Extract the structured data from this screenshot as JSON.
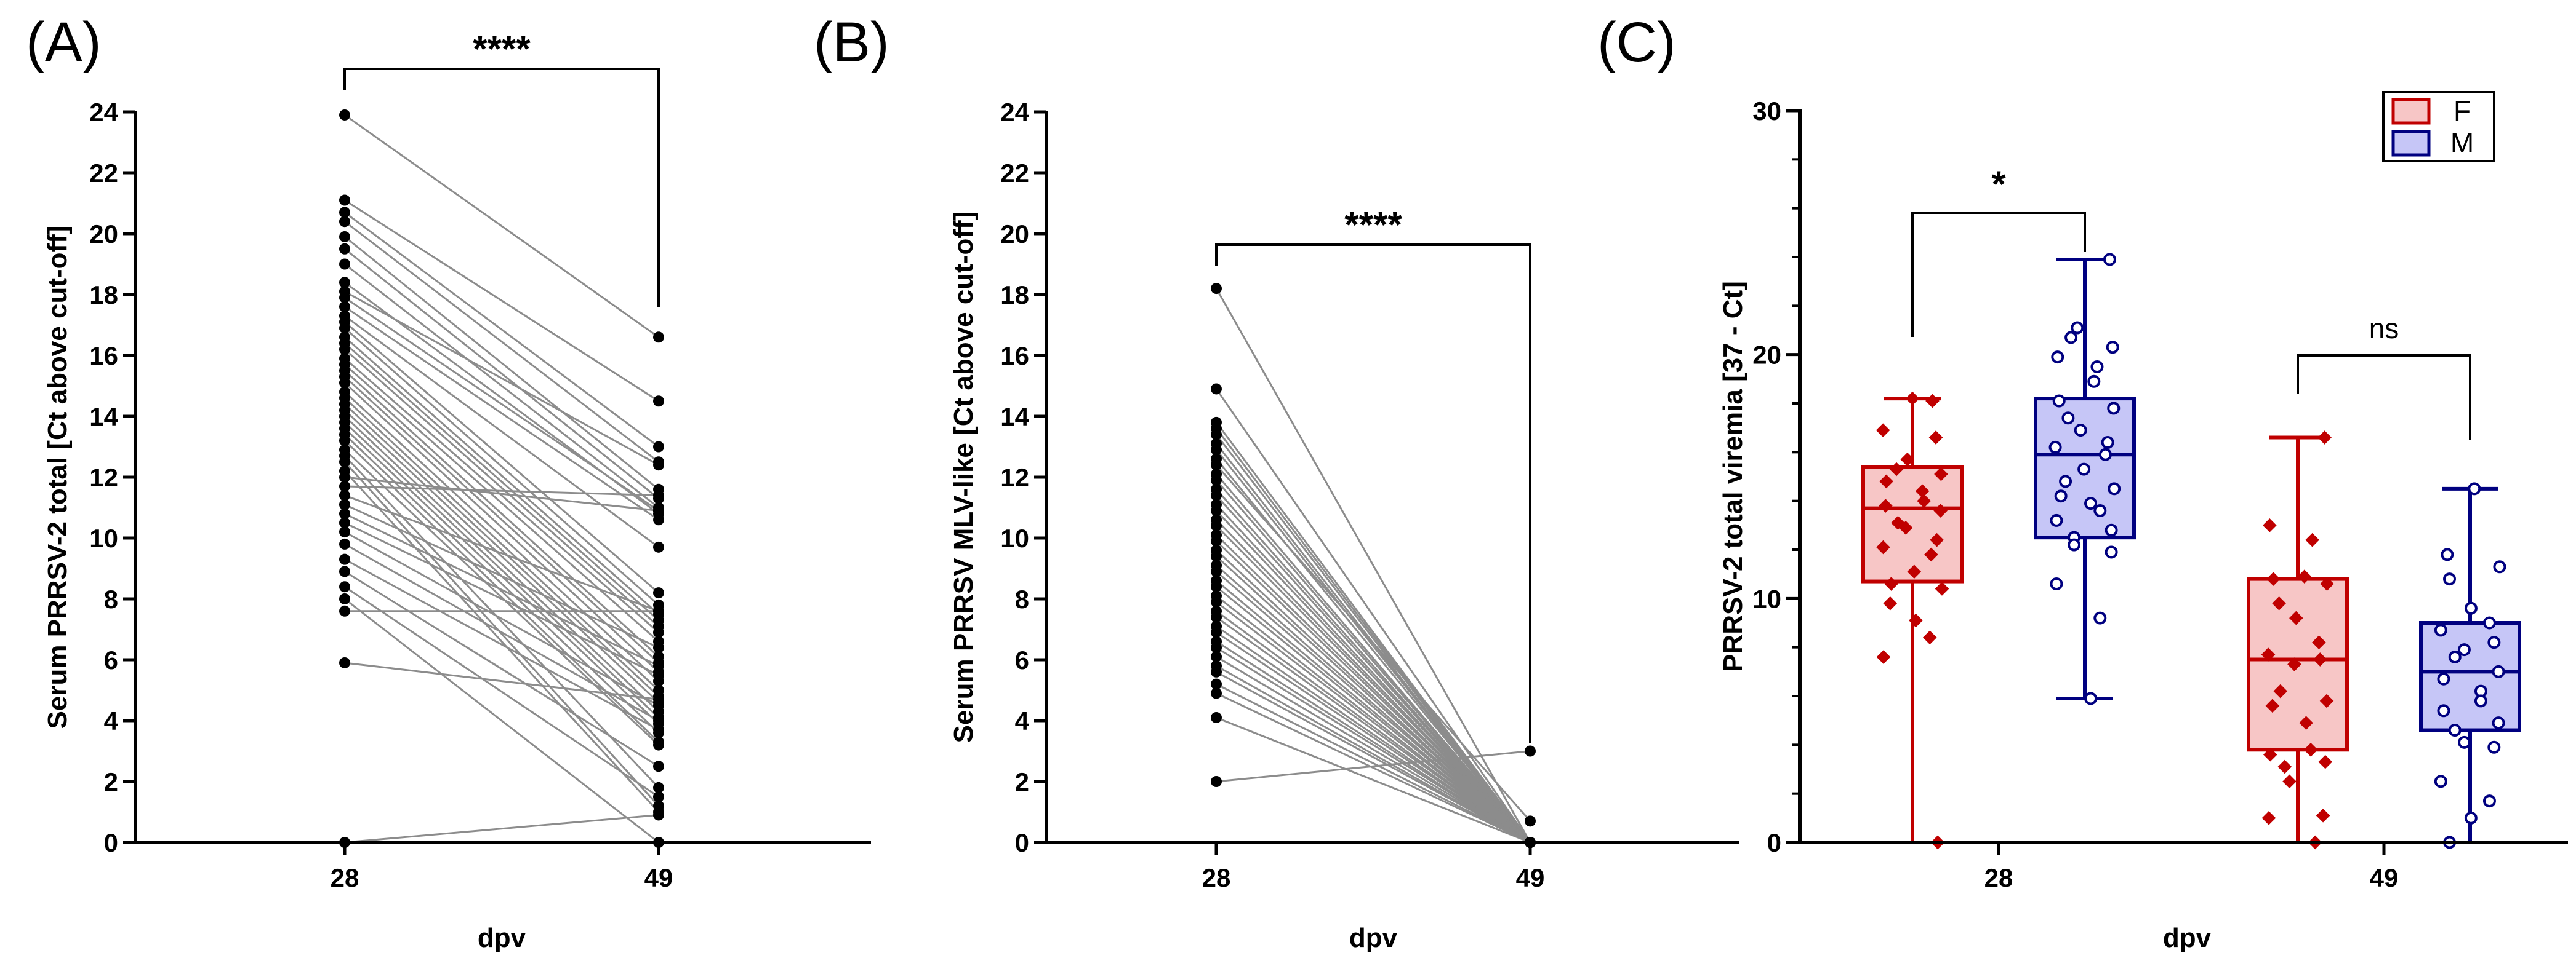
{
  "chart_data": [
    {
      "type": "line",
      "subtype": "paired-before-after",
      "panel": "(A)",
      "xlabel": "dpv",
      "ylabel": "Serum PRRSV-2 total [Ct above cut-off]",
      "categories": [
        "28",
        "49"
      ],
      "ylim": [
        0,
        24
      ],
      "yticks": [
        "0",
        "2",
        "4",
        "6",
        "8",
        "10",
        "12",
        "14",
        "16",
        "18",
        "20",
        "22",
        "24"
      ],
      "significance": "****",
      "pairs": [
        [
          23.9,
          16.6
        ],
        [
          21.1,
          14.5
        ],
        [
          20.7,
          13.0
        ],
        [
          20.4,
          12.5
        ],
        [
          19.9,
          11.6
        ],
        [
          19.5,
          11.3
        ],
        [
          19.0,
          11.0
        ],
        [
          18.4,
          10.8
        ],
        [
          18.1,
          12.4
        ],
        [
          17.9,
          10.9
        ],
        [
          17.6,
          10.6
        ],
        [
          17.3,
          9.7
        ],
        [
          17.1,
          8.2
        ],
        [
          16.9,
          7.8
        ],
        [
          16.6,
          7.5
        ],
        [
          16.4,
          7.3
        ],
        [
          16.2,
          7.1
        ],
        [
          15.9,
          6.9
        ],
        [
          15.7,
          6.6
        ],
        [
          15.5,
          6.1
        ],
        [
          15.3,
          5.9
        ],
        [
          15.1,
          5.6
        ],
        [
          14.8,
          5.3
        ],
        [
          14.6,
          5.0
        ],
        [
          14.4,
          4.8
        ],
        [
          14.2,
          4.6
        ],
        [
          14.0,
          4.3
        ],
        [
          13.8,
          4.1
        ],
        [
          13.6,
          3.9
        ],
        [
          13.4,
          3.6
        ],
        [
          13.2,
          3.3
        ],
        [
          12.9,
          3.2
        ],
        [
          12.7,
          1.8
        ],
        [
          12.5,
          1.2
        ],
        [
          12.2,
          1.0
        ],
        [
          12.0,
          10.9
        ],
        [
          11.7,
          11.4
        ],
        [
          11.4,
          7.6
        ],
        [
          11.1,
          6.4
        ],
        [
          10.8,
          5.8
        ],
        [
          10.5,
          5.5
        ],
        [
          10.2,
          4.5
        ],
        [
          9.8,
          4.0
        ],
        [
          9.3,
          3.7
        ],
        [
          8.9,
          2.5
        ],
        [
          8.4,
          1.5
        ],
        [
          8.0,
          0.0
        ],
        [
          7.6,
          7.6
        ],
        [
          5.9,
          4.7
        ],
        [
          0.0,
          0.9
        ]
      ]
    },
    {
      "type": "line",
      "subtype": "paired-before-after",
      "panel": "(B)",
      "xlabel": "dpv",
      "ylabel": "Serum PRRSV MLV-like [Ct above cut-off]",
      "categories": [
        "28",
        "49"
      ],
      "ylim": [
        0,
        24
      ],
      "yticks": [
        "0",
        "2",
        "4",
        "6",
        "8",
        "10",
        "12",
        "14",
        "16",
        "18",
        "20",
        "22",
        "24"
      ],
      "significance": "****",
      "pairs": [
        [
          18.2,
          0.0
        ],
        [
          14.9,
          0.0
        ],
        [
          13.8,
          0.0
        ],
        [
          13.6,
          0.0
        ],
        [
          13.4,
          0.0
        ],
        [
          13.1,
          0.0
        ],
        [
          12.9,
          0.0
        ],
        [
          12.6,
          0.0
        ],
        [
          12.4,
          0.7
        ],
        [
          12.1,
          0.0
        ],
        [
          11.9,
          0.0
        ],
        [
          11.6,
          0.0
        ],
        [
          11.4,
          0.0
        ],
        [
          11.1,
          0.0
        ],
        [
          10.9,
          0.0
        ],
        [
          10.6,
          0.0
        ],
        [
          10.4,
          0.0
        ],
        [
          10.1,
          0.0
        ],
        [
          9.9,
          0.0
        ],
        [
          9.6,
          0.0
        ],
        [
          9.4,
          0.0
        ],
        [
          9.1,
          0.0
        ],
        [
          8.9,
          0.0
        ],
        [
          8.6,
          0.0
        ],
        [
          8.4,
          0.0
        ],
        [
          8.1,
          0.0
        ],
        [
          7.9,
          0.0
        ],
        [
          7.6,
          0.0
        ],
        [
          7.4,
          0.0
        ],
        [
          7.1,
          0.0
        ],
        [
          6.9,
          0.0
        ],
        [
          6.6,
          0.0
        ],
        [
          6.4,
          0.0
        ],
        [
          6.1,
          0.0
        ],
        [
          5.8,
          0.0
        ],
        [
          5.6,
          0.0
        ],
        [
          5.2,
          0.0
        ],
        [
          4.9,
          0.0
        ],
        [
          4.1,
          0.0
        ],
        [
          2.0,
          3.0
        ]
      ]
    },
    {
      "type": "box",
      "panel": "(C)",
      "xlabel": "dpv",
      "ylabel": "PRRSV-2 total viremia [37 - Ct]",
      "categories": [
        "28",
        "49"
      ],
      "ylim": [
        0,
        30
      ],
      "yticks": [
        "0",
        "10",
        "20",
        "30"
      ],
      "legend": [
        {
          "name": "F",
          "stroke": "#c00000",
          "fill": "#f7c6c6"
        },
        {
          "name": "M",
          "stroke": "#000080",
          "fill": "#c6c6f7"
        }
      ],
      "legend_position": "top-right",
      "comparisons": [
        {
          "category": "28",
          "label": "*"
        },
        {
          "category": "49",
          "label": "ns"
        }
      ],
      "boxes": [
        {
          "category": "28",
          "group": "F",
          "min": 0.0,
          "q1": 10.7,
          "median": 13.7,
          "q3": 15.4,
          "max": 18.2,
          "points": [
            18.2,
            18.1,
            16.9,
            16.6,
            15.7,
            15.3,
            15.1,
            14.8,
            14.4,
            14.0,
            13.8,
            13.6,
            13.1,
            12.9,
            12.4,
            12.1,
            11.8,
            11.1,
            10.6,
            10.4,
            9.8,
            9.1,
            8.4,
            7.6,
            0.0
          ]
        },
        {
          "category": "28",
          "group": "M",
          "min": 5.9,
          "q1": 12.5,
          "median": 15.9,
          "q3": 18.2,
          "max": 23.9,
          "points": [
            23.9,
            21.1,
            20.7,
            20.3,
            19.9,
            19.5,
            18.9,
            18.1,
            17.8,
            17.4,
            16.9,
            16.4,
            16.2,
            15.9,
            15.3,
            14.8,
            14.5,
            14.2,
            13.9,
            13.6,
            13.2,
            12.8,
            12.5,
            12.2,
            11.9,
            10.6,
            9.2,
            5.9
          ]
        },
        {
          "category": "49",
          "group": "F",
          "min": 0.0,
          "q1": 3.8,
          "median": 7.5,
          "q3": 10.8,
          "max": 16.6,
          "points": [
            16.6,
            13.0,
            12.4,
            10.9,
            10.8,
            10.6,
            9.8,
            9.2,
            8.2,
            7.7,
            7.5,
            7.3,
            6.2,
            5.8,
            5.6,
            4.9,
            3.8,
            3.6,
            3.3,
            3.1,
            2.5,
            1.1,
            1.0,
            0.0
          ]
        },
        {
          "category": "49",
          "group": "M",
          "min": 0.0,
          "q1": 4.6,
          "median": 7.0,
          "q3": 9.0,
          "max": 14.5,
          "points": [
            14.5,
            11.8,
            11.3,
            10.8,
            9.6,
            9.0,
            8.7,
            8.2,
            7.9,
            7.6,
            7.0,
            6.7,
            6.2,
            5.8,
            5.4,
            4.9,
            4.6,
            4.1,
            3.9,
            2.5,
            1.7,
            1.0,
            0.0
          ]
        }
      ]
    }
  ]
}
